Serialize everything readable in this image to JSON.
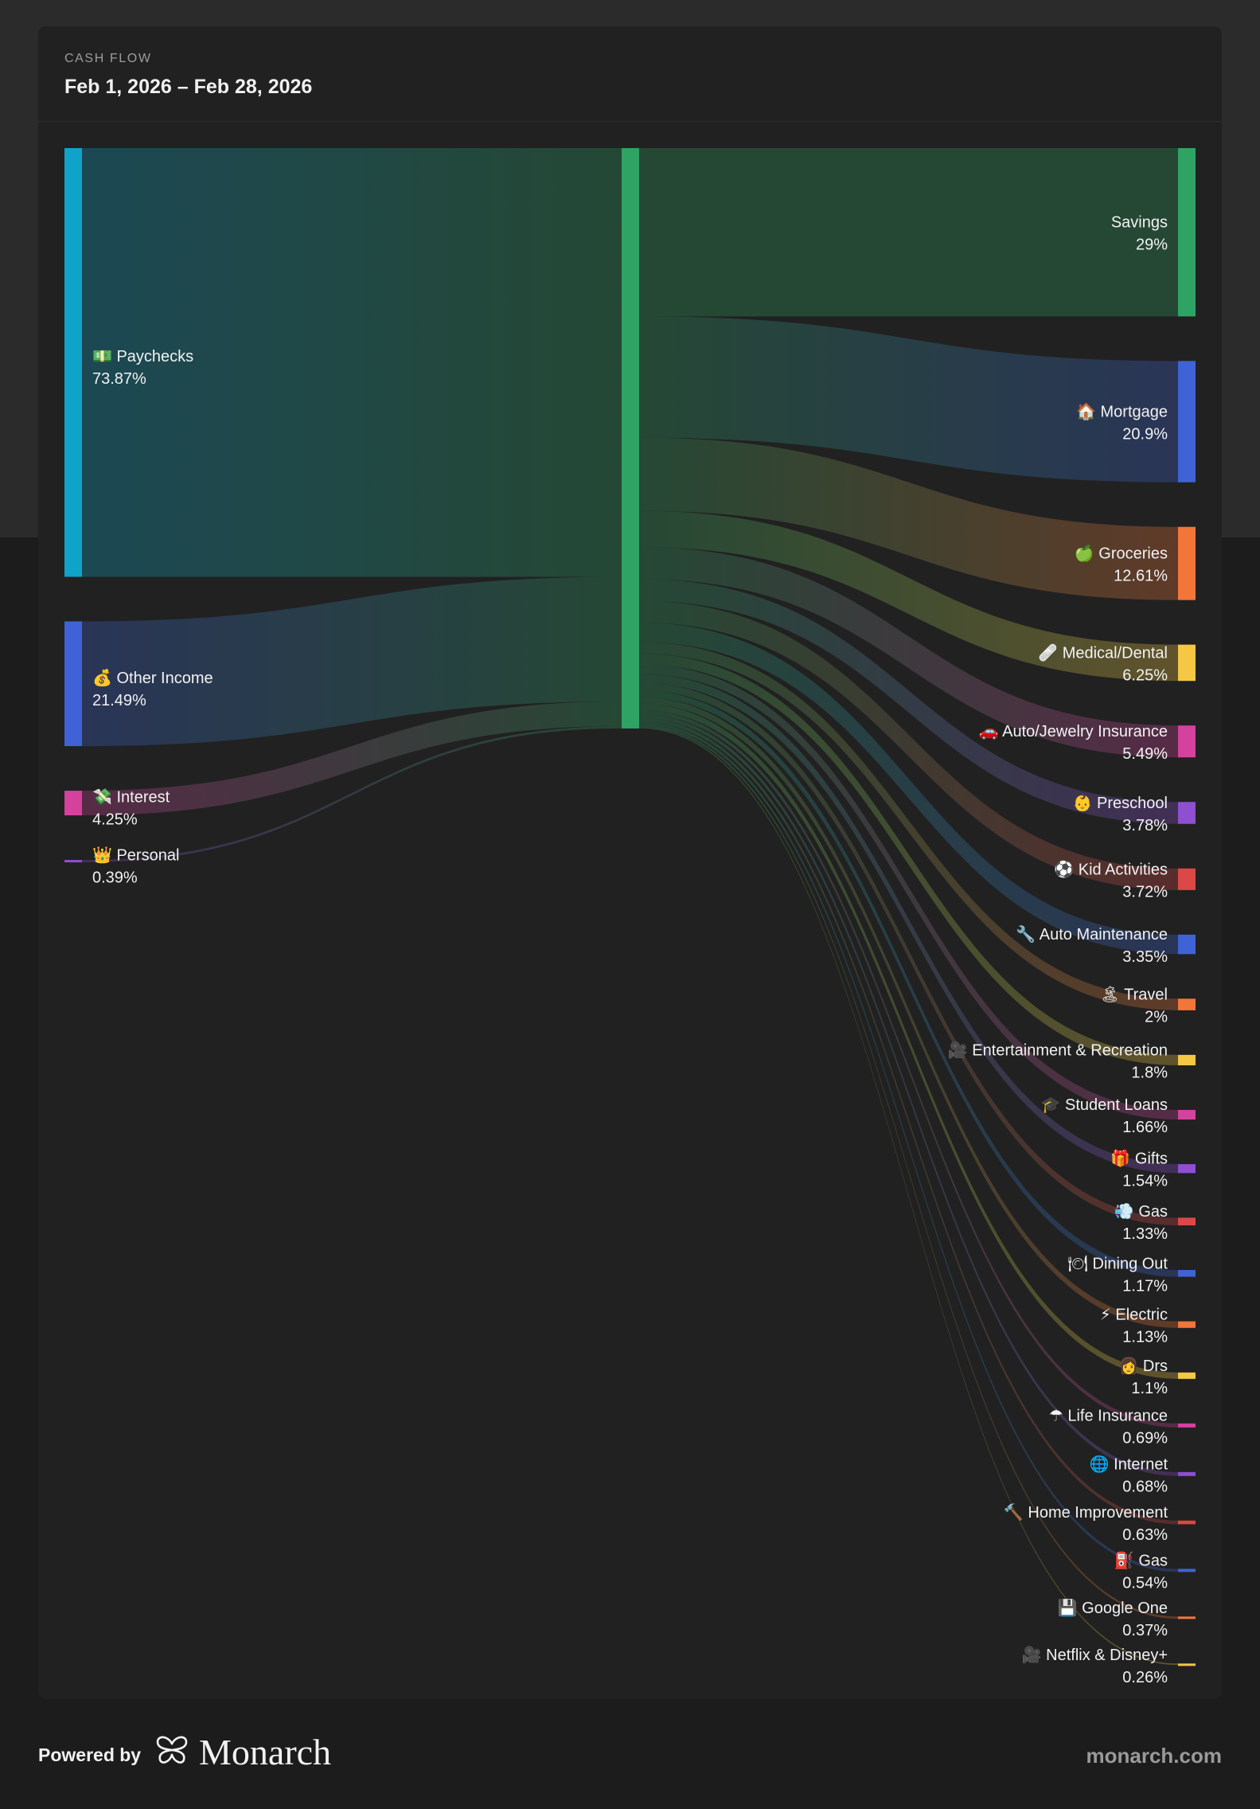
{
  "header": {
    "eyebrow": "CASH FLOW",
    "date_range": "Feb 1, 2026 – Feb 28, 2026"
  },
  "footer": {
    "powered_label": "Powered by",
    "brand": "Monarch",
    "site": "monarch.com"
  },
  "chart_data": {
    "type": "sankey",
    "center_color": "#2ea363",
    "income": [
      {
        "name": "Paychecks",
        "icon": "💵",
        "percent": 73.87,
        "label": "73.87%",
        "color": "#0fa3c9"
      },
      {
        "name": "Other Income",
        "icon": "💰",
        "percent": 21.49,
        "label": "21.49%",
        "color": "#3f63d6"
      },
      {
        "name": "Interest",
        "icon": "💸",
        "percent": 4.25,
        "label": "4.25%",
        "color": "#d4429e"
      },
      {
        "name": "Personal",
        "icon": "👑",
        "percent": 0.39,
        "label": "0.39%",
        "color": "#8e4fd1"
      }
    ],
    "outflows": [
      {
        "name": "Savings",
        "icon": "",
        "percent": 29,
        "label": "29%",
        "color": "#2ea363"
      },
      {
        "name": "Mortgage",
        "icon": "🏠",
        "percent": 20.9,
        "label": "20.9%",
        "color": "#3f63d6"
      },
      {
        "name": "Groceries",
        "icon": "🍏",
        "percent": 12.61,
        "label": "12.61%",
        "color": "#f2763a"
      },
      {
        "name": "Medical/Dental",
        "icon": "🩹",
        "percent": 6.25,
        "label": "6.25%",
        "color": "#f4c845"
      },
      {
        "name": "Auto/Jewelry Insurance",
        "icon": "🚗",
        "percent": 5.49,
        "label": "5.49%",
        "color": "#d4429e"
      },
      {
        "name": "Preschool",
        "icon": "👶",
        "percent": 3.78,
        "label": "3.78%",
        "color": "#8e4fd1"
      },
      {
        "name": "Kid Activities",
        "icon": "⚽",
        "percent": 3.72,
        "label": "3.72%",
        "color": "#dc4747"
      },
      {
        "name": "Auto Maintenance",
        "icon": "🔧",
        "percent": 3.35,
        "label": "3.35%",
        "color": "#3f63d6"
      },
      {
        "name": "Travel",
        "icon": "🏝",
        "percent": 2,
        "label": "2%",
        "color": "#f2763a"
      },
      {
        "name": "Entertainment & Recreation",
        "icon": "🎥",
        "percent": 1.8,
        "label": "1.8%",
        "color": "#f4c845"
      },
      {
        "name": "Student Loans",
        "icon": "🎓",
        "percent": 1.66,
        "label": "1.66%",
        "color": "#d4429e"
      },
      {
        "name": "Gifts",
        "icon": "🎁",
        "percent": 1.54,
        "label": "1.54%",
        "color": "#8e4fd1"
      },
      {
        "name": "Gas",
        "icon": "💨",
        "percent": 1.33,
        "label": "1.33%",
        "color": "#dc4747"
      },
      {
        "name": "Dining Out",
        "icon": "🍽",
        "percent": 1.17,
        "label": "1.17%",
        "color": "#3f63d6"
      },
      {
        "name": "Electric",
        "icon": "⚡",
        "percent": 1.13,
        "label": "1.13%",
        "color": "#f2763a"
      },
      {
        "name": "Drs",
        "icon": "👩",
        "percent": 1.1,
        "label": "1.1%",
        "color": "#f4c845"
      },
      {
        "name": "Life Insurance",
        "icon": "☂",
        "percent": 0.69,
        "label": "0.69%",
        "color": "#d4429e"
      },
      {
        "name": "Internet",
        "icon": "🌐",
        "percent": 0.68,
        "label": "0.68%",
        "color": "#8e4fd1"
      },
      {
        "name": "Home Improvement",
        "icon": "🔨",
        "percent": 0.63,
        "label": "0.63%",
        "color": "#dc4747"
      },
      {
        "name": "Gas",
        "icon": "⛽",
        "percent": 0.54,
        "label": "0.54%",
        "color": "#3f63d6"
      },
      {
        "name": "Google One",
        "icon": "💾",
        "percent": 0.37,
        "label": "0.37%",
        "color": "#f2763a"
      },
      {
        "name": "Netflix & Disney+",
        "icon": "🎥",
        "percent": 0.26,
        "label": "0.26%",
        "color": "#f4c845"
      }
    ]
  }
}
